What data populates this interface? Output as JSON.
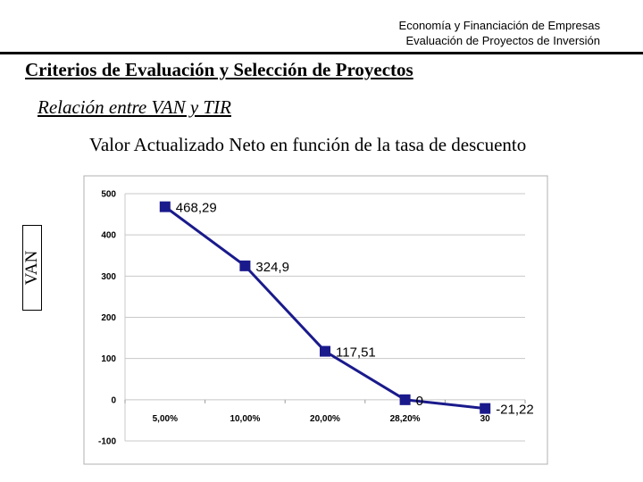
{
  "header": {
    "line1": "Economía y Financiación de Empresas",
    "line2": "Evaluación de Proyectos de Inversión"
  },
  "slide": {
    "title": "Criterios de Evaluación y Selección de Proyectos",
    "subtitle": "Relación entre VAN y TIR"
  },
  "chart_data": {
    "type": "line",
    "title": "Valor Actualizado Neto en función de la tasa de descuento",
    "xlabel": "",
    "ylabel": "VAN",
    "categories": [
      "5,00%",
      "10,00%",
      "20,00%",
      "28,20%",
      "30"
    ],
    "values": [
      468.29,
      324.9,
      117.51,
      0,
      -21.22
    ],
    "data_labels": [
      "468,29",
      "324,9",
      "117,51",
      "0",
      "-21,22"
    ],
    "yticks": [
      "500",
      "400",
      "300",
      "200",
      "100",
      "0",
      "-100"
    ],
    "ylim": [
      -100,
      500
    ],
    "grid": true,
    "legend": false,
    "colors": {
      "line": "#1a1a8c",
      "grid": "#c8c8c8",
      "border": "#b0b0b0"
    }
  }
}
